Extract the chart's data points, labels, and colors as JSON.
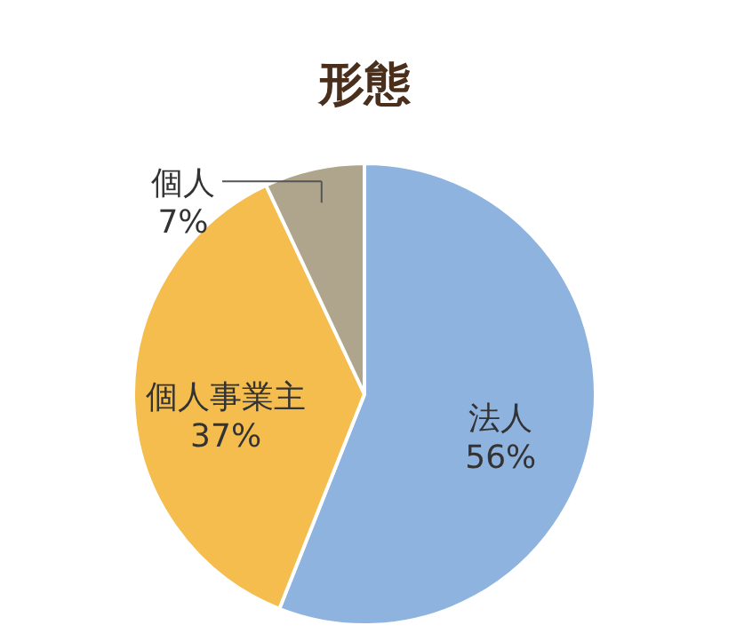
{
  "chart_data": {
    "type": "pie",
    "title": "形態",
    "categories": [
      "法人",
      "個人事業主",
      "個人"
    ],
    "values": [
      56,
      37,
      7
    ],
    "value_labels": [
      "56%",
      "37%",
      "7%"
    ],
    "colors": [
      "#8fb3df",
      "#f4bd4e",
      "#aea58c"
    ]
  }
}
